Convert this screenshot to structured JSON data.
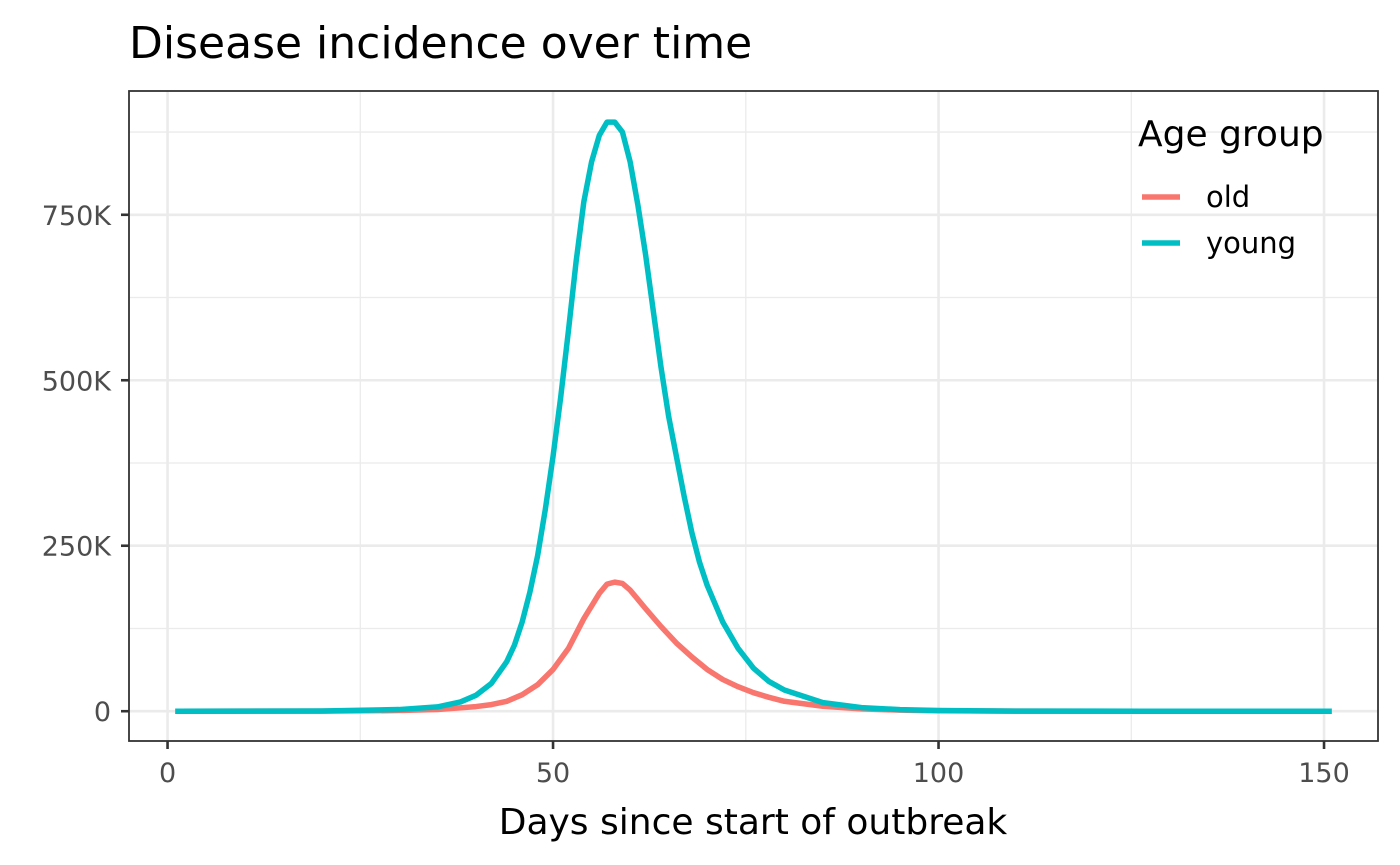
{
  "chart_data": {
    "type": "line",
    "title": "Disease incidence over time",
    "xlabel": "Days since start of outbreak",
    "ylabel": "",
    "xlim": [
      -5,
      157
    ],
    "ylim": [
      -45000,
      937000
    ],
    "x_ticks": [
      0,
      50,
      100,
      150
    ],
    "x_tick_labels": [
      "0",
      "50",
      "100",
      "150"
    ],
    "y_ticks": [
      0,
      250000,
      500000,
      750000
    ],
    "y_tick_labels": [
      "0",
      "250K",
      "500K",
      "750K"
    ],
    "grid": true,
    "legend": {
      "title": "Age group",
      "placement": "top-right",
      "entries": [
        "old",
        "young"
      ]
    },
    "series": [
      {
        "name": "old",
        "color": "#F8766D",
        "x": [
          1,
          20,
          30,
          35,
          40,
          42,
          44,
          46,
          48,
          50,
          52,
          54,
          56,
          57,
          58,
          59,
          60,
          62,
          64,
          66,
          68,
          70,
          72,
          74,
          76,
          78,
          80,
          85,
          90,
          95,
          100,
          110,
          120,
          130,
          140,
          151
        ],
        "y": [
          0,
          100,
          1000,
          2500,
          7000,
          10000,
          15000,
          25000,
          40000,
          63000,
          95000,
          140000,
          178000,
          192000,
          195000,
          193000,
          183000,
          155000,
          128000,
          103000,
          82000,
          63000,
          48000,
          37000,
          28000,
          21000,
          15000,
          7500,
          3500,
          1600,
          700,
          150,
          30,
          0,
          0,
          0
        ]
      },
      {
        "name": "young",
        "color": "#00BFC4",
        "x": [
          1,
          20,
          30,
          35,
          38,
          40,
          42,
          44,
          45,
          46,
          47,
          48,
          49,
          50,
          51,
          52,
          53,
          54,
          55,
          56,
          57,
          58,
          59,
          60,
          61,
          62,
          63,
          64,
          65,
          66,
          67,
          68,
          69,
          70,
          72,
          74,
          76,
          78,
          80,
          85,
          90,
          95,
          100,
          110,
          120,
          130,
          140,
          151
        ],
        "y": [
          0,
          300,
          2500,
          6500,
          14000,
          24000,
          42000,
          75000,
          100000,
          135000,
          180000,
          235000,
          305000,
          385000,
          475000,
          575000,
          680000,
          770000,
          830000,
          870000,
          890000,
          890000,
          875000,
          830000,
          765000,
          690000,
          605000,
          520000,
          445000,
          385000,
          325000,
          270000,
          225000,
          190000,
          135000,
          95000,
          65000,
          45000,
          32000,
          13000,
          5500,
          2400,
          1000,
          200,
          50,
          0,
          0,
          0
        ]
      }
    ]
  }
}
